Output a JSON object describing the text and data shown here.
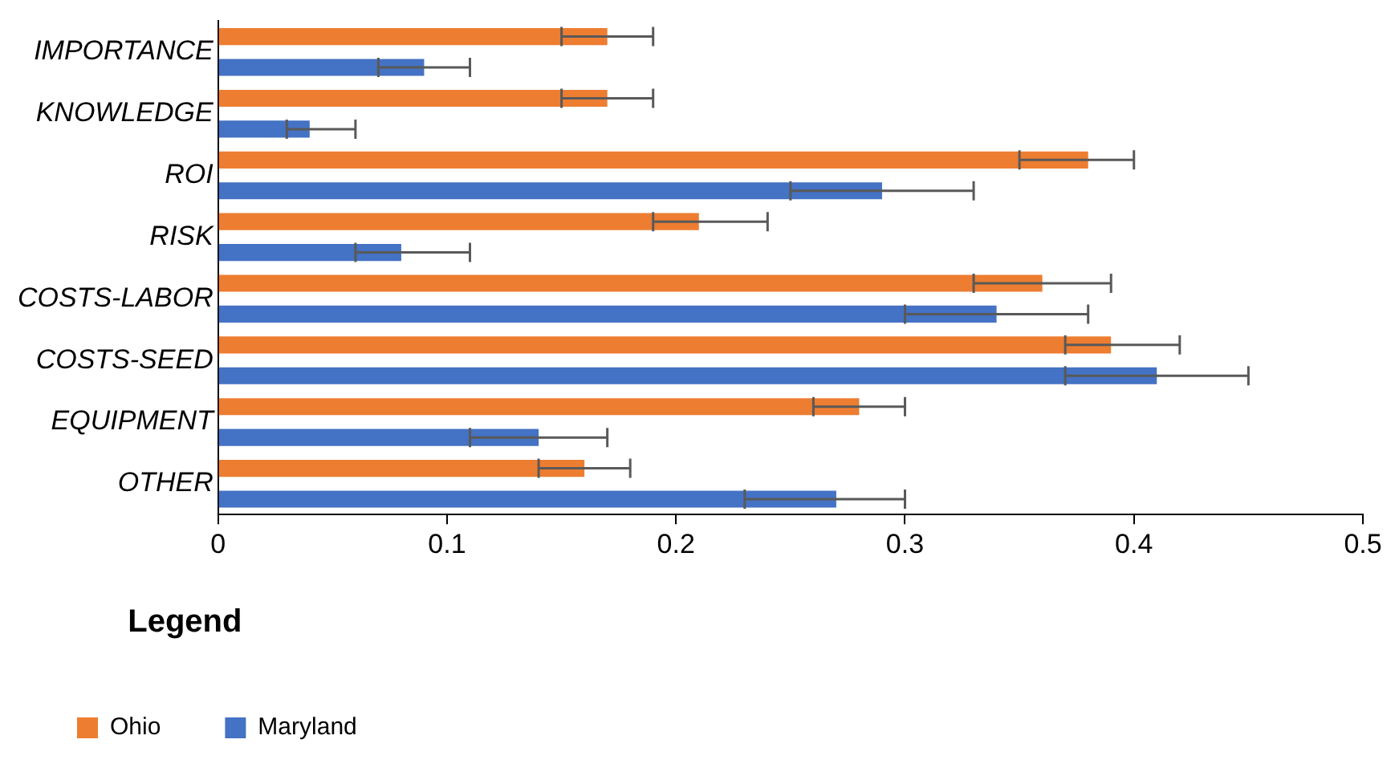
{
  "chart_data": {
    "type": "bar",
    "orientation": "horizontal",
    "categories": [
      "IMPORTANCE",
      "KNOWLEDGE",
      "ROI",
      "RISK",
      "COSTS-LABOR",
      "COSTS-SEED",
      "EQUIPMENT",
      "OTHER"
    ],
    "series": [
      {
        "name": "Ohio",
        "color": "#ed7d31",
        "values": [
          0.17,
          0.17,
          0.38,
          0.21,
          0.36,
          0.39,
          0.28,
          0.16
        ],
        "errors": [
          [
            0.15,
            0.19
          ],
          [
            0.15,
            0.19
          ],
          [
            0.35,
            0.4
          ],
          [
            0.19,
            0.24
          ],
          [
            0.33,
            0.39
          ],
          [
            0.37,
            0.42
          ],
          [
            0.26,
            0.3
          ],
          [
            0.14,
            0.18
          ]
        ]
      },
      {
        "name": "Maryland",
        "color": "#4472c4",
        "values": [
          0.09,
          0.04,
          0.29,
          0.08,
          0.34,
          0.41,
          0.14,
          0.27
        ],
        "errors": [
          [
            0.07,
            0.11
          ],
          [
            0.03,
            0.06
          ],
          [
            0.25,
            0.33
          ],
          [
            0.06,
            0.11
          ],
          [
            0.3,
            0.38
          ],
          [
            0.37,
            0.45
          ],
          [
            0.11,
            0.17
          ],
          [
            0.23,
            0.3
          ]
        ]
      }
    ],
    "xlim": [
      0,
      0.5
    ],
    "xticks": [
      0,
      0.1,
      0.2,
      0.3,
      0.4,
      0.5
    ],
    "grid": false,
    "legend": "bottom left",
    "legend_title": "Legend"
  }
}
